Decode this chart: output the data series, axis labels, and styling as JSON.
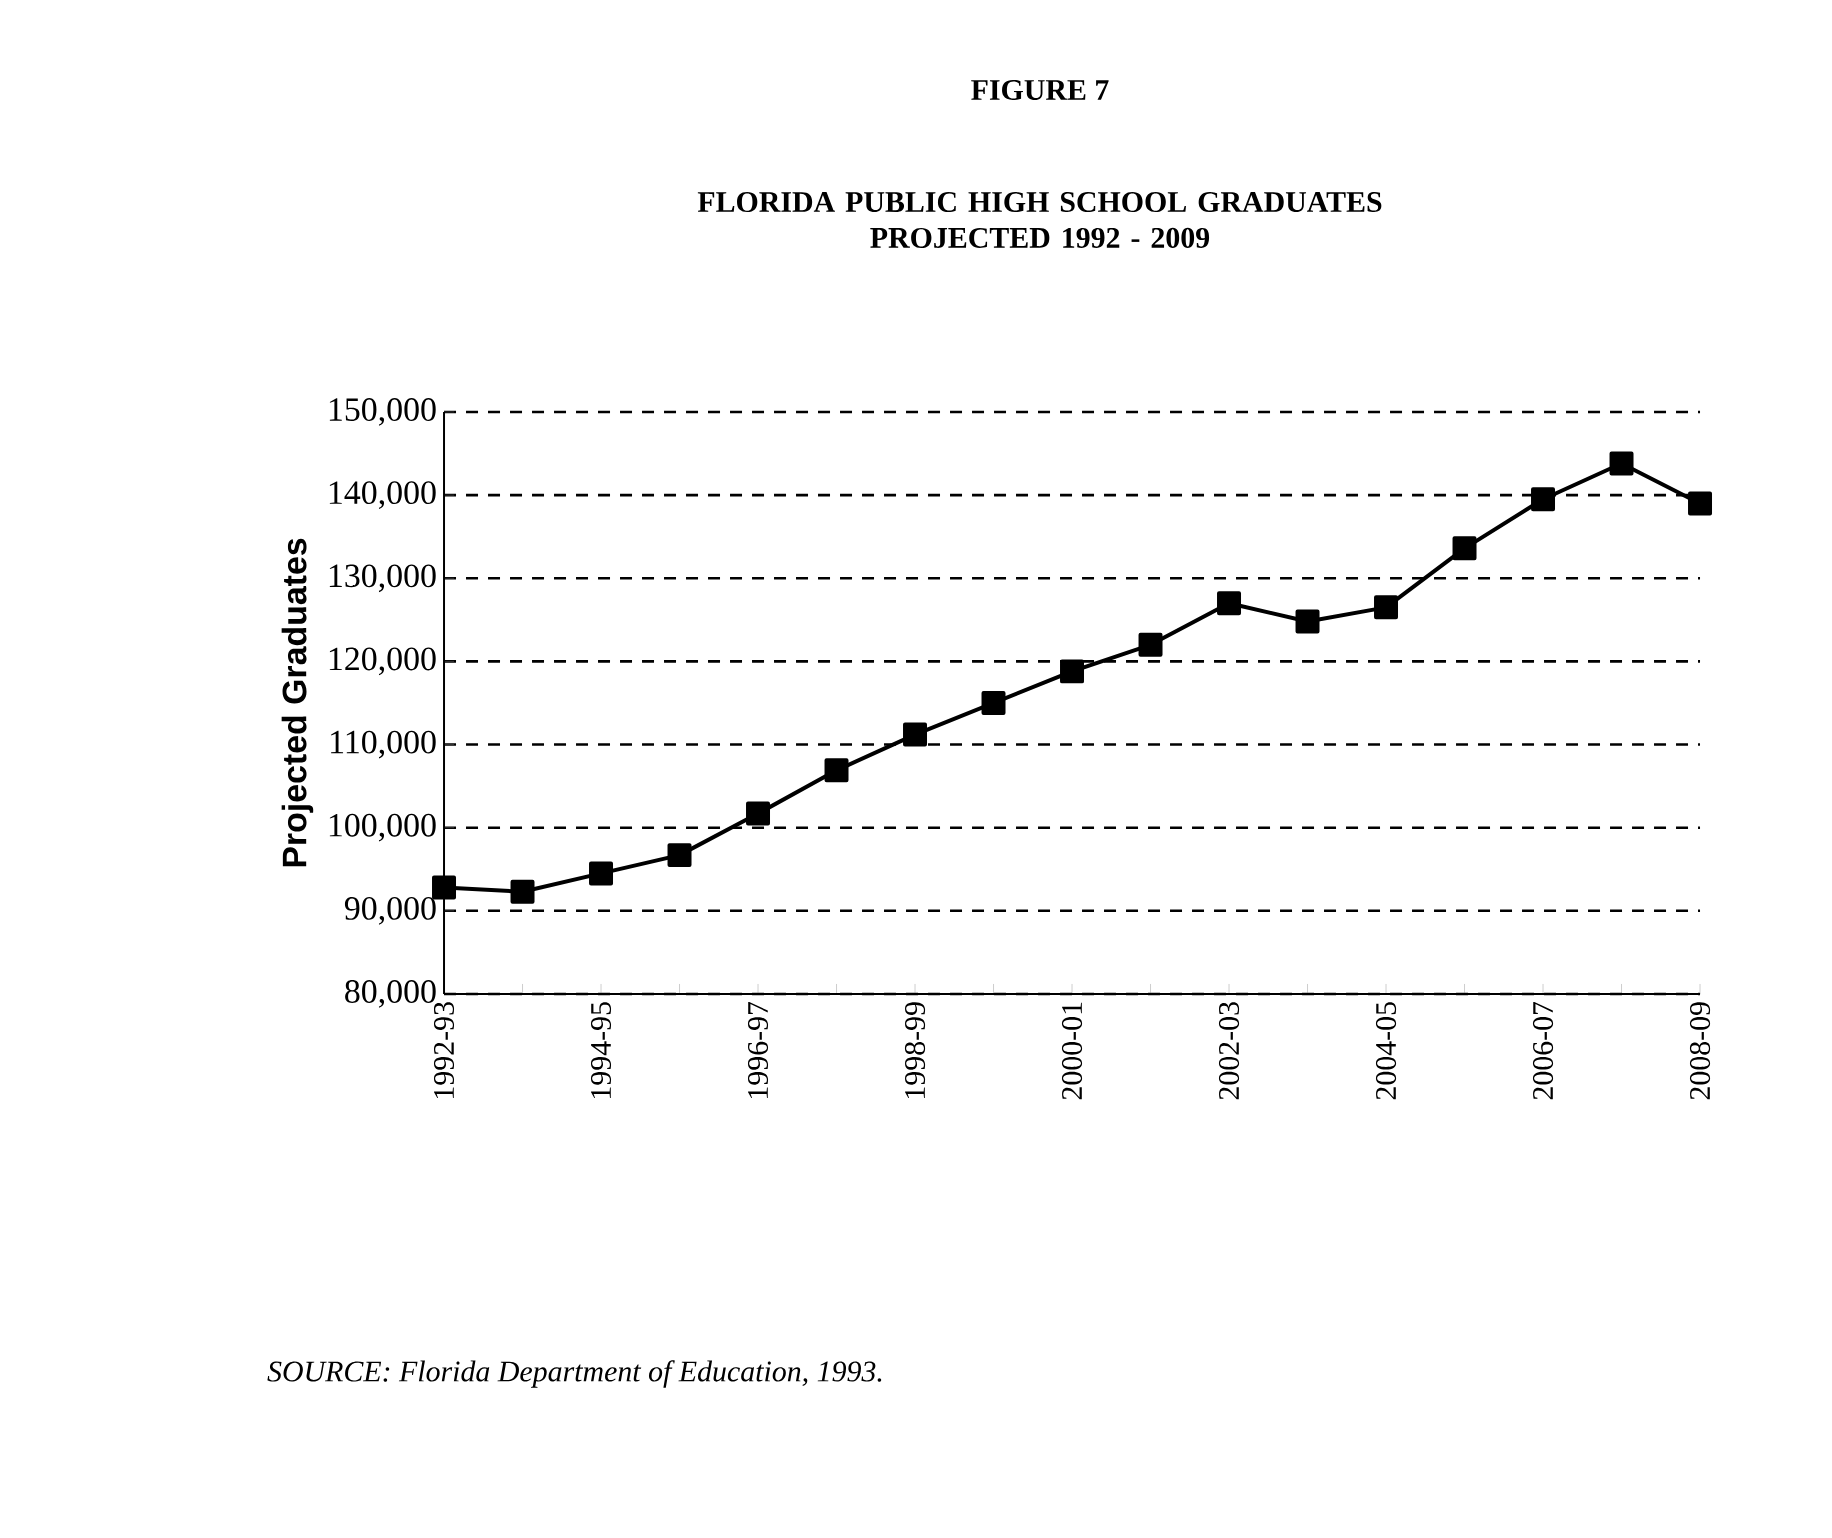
{
  "chart_data": {
    "type": "line",
    "title": "FIGURE 7",
    "subtitle": "FLORIDA PUBLIC HIGH SCHOOL GRADUATES\nPROJECTED 1992 - 2009",
    "ylabel": "Projected  Graduates",
    "categories": [
      "1992-93",
      null,
      "1994-95",
      null,
      "1996-97",
      null,
      "1998-99",
      null,
      "2000-01",
      null,
      "2002-03",
      null,
      "2004-05",
      null,
      "2006-07",
      null,
      "2008-09"
    ],
    "series": [
      {
        "color": "#000000",
        "values": [
          92800,
          92300,
          94500,
          96700,
          101700,
          106900,
          111200,
          115000,
          118800,
          122000,
          127000,
          124800,
          126500,
          133600,
          139500,
          143800,
          139000
        ]
      }
    ],
    "ylim": [
      80000,
      150000
    ],
    "yticks": [
      {
        "value": 80000,
        "label": "80,000"
      },
      {
        "value": 90000,
        "label": "90,000"
      },
      {
        "value": 100000,
        "label": "100,000"
      },
      {
        "value": 110000,
        "label": "110,000"
      },
      {
        "value": 120000,
        "label": "120,000"
      },
      {
        "value": 130000,
        "label": "130,000"
      },
      {
        "value": 140000,
        "label": "140,000"
      },
      {
        "value": 150000,
        "label": "150,000"
      }
    ],
    "grid": "y",
    "marker": "square",
    "line_style": "solid",
    "annotations": [
      "SOURCE:  Florida Department of Education, 1993."
    ]
  }
}
